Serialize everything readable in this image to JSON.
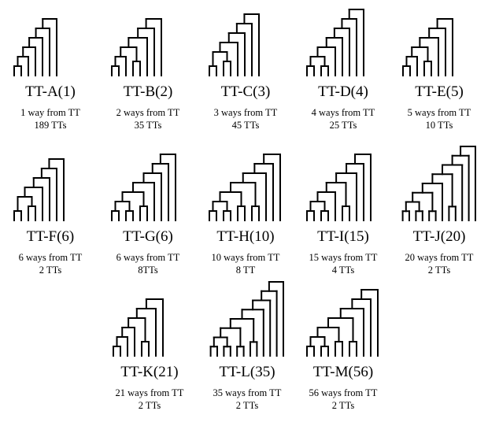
{
  "trees": [
    {
      "id": "A",
      "label": "TT-A(1)",
      "ways": "1 way from TT",
      "count": "189 TTs",
      "shape": [
        1,
        1,
        1,
        1,
        1,
        1
      ]
    },
    {
      "id": "B",
      "label": "TT-B(2)",
      "ways": "2 ways from TT",
      "count": "35 TTs",
      "shape": [
        1,
        1,
        2,
        1,
        1,
        1
      ]
    },
    {
      "id": "C",
      "label": "TT-C(3)",
      "ways": "3 ways from TT",
      "count": "45 TTs",
      "shape": [
        1,
        2,
        1,
        1,
        1,
        1
      ]
    },
    {
      "id": "D",
      "label": "TT-D(4)",
      "ways": "4 ways from TT",
      "count": "25 TTs",
      "shape": [
        2,
        1,
        1,
        1,
        1,
        1
      ]
    },
    {
      "id": "E",
      "label": "TT-E(5)",
      "ways": "5 ways from TT",
      "count": "10 TTs",
      "shape": [
        1,
        1,
        3,
        1,
        1,
        1
      ]
    },
    {
      "id": "F",
      "label": "TT-F(6)",
      "ways": "6 ways from TT",
      "count": "2 TTs",
      "shape": [
        1,
        3,
        1,
        1,
        1,
        1
      ]
    },
    {
      "id": "G",
      "label": "TT-G(6)",
      "ways": "6 ways from TT",
      "count": "8TTs",
      "shape": [
        2,
        2,
        1,
        1,
        1,
        1
      ]
    },
    {
      "id": "H",
      "label": "TT-H(10)",
      "ways": "10 ways from TT",
      "count": "8 TT",
      "shape": [
        2,
        2,
        2,
        1,
        1,
        1
      ]
    },
    {
      "id": "I",
      "label": "TT-I(15)",
      "ways": "15 ways from TT",
      "count": "4 TTs",
      "shape": [
        2,
        1,
        3,
        1,
        1,
        1
      ]
    },
    {
      "id": "J",
      "label": "TT-J(20)",
      "ways": "20 ways from TT",
      "count": "2 TTs",
      "shape": [
        3,
        1,
        2,
        1,
        1,
        1
      ]
    },
    {
      "id": "K",
      "label": "TT-K(21)",
      "ways": "21 ways from TT",
      "count": "2 TTs",
      "shape": [
        1,
        1,
        1,
        3,
        1,
        1
      ]
    },
    {
      "id": "L",
      "label": "TT-L(35)",
      "ways": "35  ways from TT",
      "count": "2 TTs",
      "shape": [
        3,
        3,
        1,
        1,
        1,
        1
      ]
    },
    {
      "id": "M",
      "label": "TT-M(56)",
      "ways": "56 ways from TT",
      "count": "2 TTs",
      "shape": [
        2,
        3,
        3,
        1,
        1,
        1
      ]
    }
  ]
}
